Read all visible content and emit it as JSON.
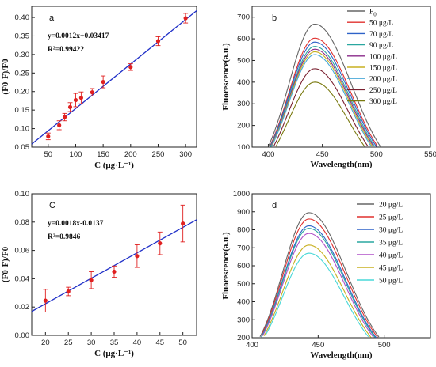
{
  "chart_data": [
    {
      "type": "scatter",
      "panel": "a",
      "equation": "y=0.0012x+0.03417",
      "r2": "R²=0.99422",
      "xlabel": "C (μg·L⁻¹)",
      "ylabel": "(F0-F)/F0",
      "xlim": [
        20,
        320
      ],
      "ylim": [
        0.05,
        0.43
      ],
      "xticks": [
        50,
        100,
        150,
        200,
        250,
        300
      ],
      "yticks": [
        0.05,
        0.1,
        0.15,
        0.2,
        0.25,
        0.3,
        0.35,
        0.4
      ],
      "x": [
        50,
        70,
        80,
        90,
        100,
        110,
        130,
        150,
        200,
        250,
        300
      ],
      "y": [
        0.079,
        0.109,
        0.131,
        0.158,
        0.177,
        0.183,
        0.198,
        0.226,
        0.266,
        0.336,
        0.398
      ],
      "err": [
        0.009,
        0.012,
        0.01,
        0.012,
        0.018,
        0.016,
        0.01,
        0.016,
        0.009,
        0.012,
        0.013
      ],
      "fit": {
        "slope": 0.0012,
        "intercept": 0.03417
      },
      "point_color": "#e02020",
      "line_color": "#2030c8"
    },
    {
      "type": "line",
      "panel": "b",
      "xlabel": "Wavelength(nm)",
      "ylabel": "Fluorescence(a.u.)",
      "xlim": [
        385,
        550
      ],
      "ylim": [
        100,
        750
      ],
      "xticks": [
        400,
        450,
        500,
        550
      ],
      "yticks": [
        100,
        200,
        300,
        400,
        500,
        600,
        700
      ],
      "legend_position": "top-right",
      "series": [
        {
          "name": "F",
          "sub": "0",
          "peak": 668,
          "color": "#666666"
        },
        {
          "name": "50 μg/L",
          "peak": 603,
          "color": "#e0302e"
        },
        {
          "name": "70 μg/L",
          "peak": 585,
          "color": "#2e62c8"
        },
        {
          "name": "90 μg/L",
          "peak": 565,
          "color": "#2aa7a0"
        },
        {
          "name": "100 μg/L",
          "peak": 552,
          "color": "#8a2a8a"
        },
        {
          "name": "150 μg/L",
          "peak": 540,
          "color": "#c8b020"
        },
        {
          "name": "200 μg/L",
          "peak": 527,
          "color": "#48a8d8"
        },
        {
          "name": "250 μg/L",
          "peak": 462,
          "color": "#7a2030"
        },
        {
          "name": "300 μg/L",
          "peak": 400,
          "color": "#7a7a10"
        }
      ]
    },
    {
      "type": "scatter",
      "panel": "C",
      "equation": "y=0.0018x-0.0137",
      "r2": "R²=0.9846",
      "xlabel": "C (μg·L⁻¹)",
      "ylabel": "(F0-F)/F0",
      "xlim": [
        17,
        53
      ],
      "ylim": [
        0.0,
        0.1
      ],
      "xticks": [
        20,
        25,
        30,
        35,
        40,
        45,
        50
      ],
      "yticks": [
        0.0,
        0.02,
        0.04,
        0.06,
        0.08,
        0.1
      ],
      "x": [
        20,
        25,
        30,
        35,
        40,
        45,
        50
      ],
      "y": [
        0.0245,
        0.031,
        0.039,
        0.045,
        0.056,
        0.065,
        0.079
      ],
      "err": [
        0.008,
        0.003,
        0.006,
        0.004,
        0.008,
        0.008,
        0.013
      ],
      "fit": {
        "slope": 0.0018,
        "intercept": -0.0137
      },
      "point_color": "#e02020",
      "line_color": "#2030c8"
    },
    {
      "type": "line",
      "panel": "d",
      "xlabel": "Wavelength(nm)",
      "ylabel": "Fluorescence(a.u.)",
      "xlim": [
        400,
        535
      ],
      "ylim": [
        200,
        1000
      ],
      "xticks": [
        400,
        450,
        500
      ],
      "yticks": [
        200,
        300,
        400,
        500,
        600,
        700,
        800,
        900,
        1000
      ],
      "legend_position": "top-right",
      "series": [
        {
          "name": "20 μg/L",
          "peak": 895,
          "color": "#666666"
        },
        {
          "name": "25 μg/L",
          "peak": 860,
          "color": "#e0302e"
        },
        {
          "name": "30 μg/L",
          "peak": 822,
          "color": "#2e62c8"
        },
        {
          "name": "35 μg/L",
          "peak": 808,
          "color": "#2aa7a0"
        },
        {
          "name": "40 μg/L",
          "peak": 780,
          "color": "#b050c8"
        },
        {
          "name": "45 μg/L",
          "peak": 715,
          "color": "#c8b020"
        },
        {
          "name": "50 μg/L",
          "peak": 670,
          "color": "#48d8d8"
        }
      ]
    }
  ]
}
